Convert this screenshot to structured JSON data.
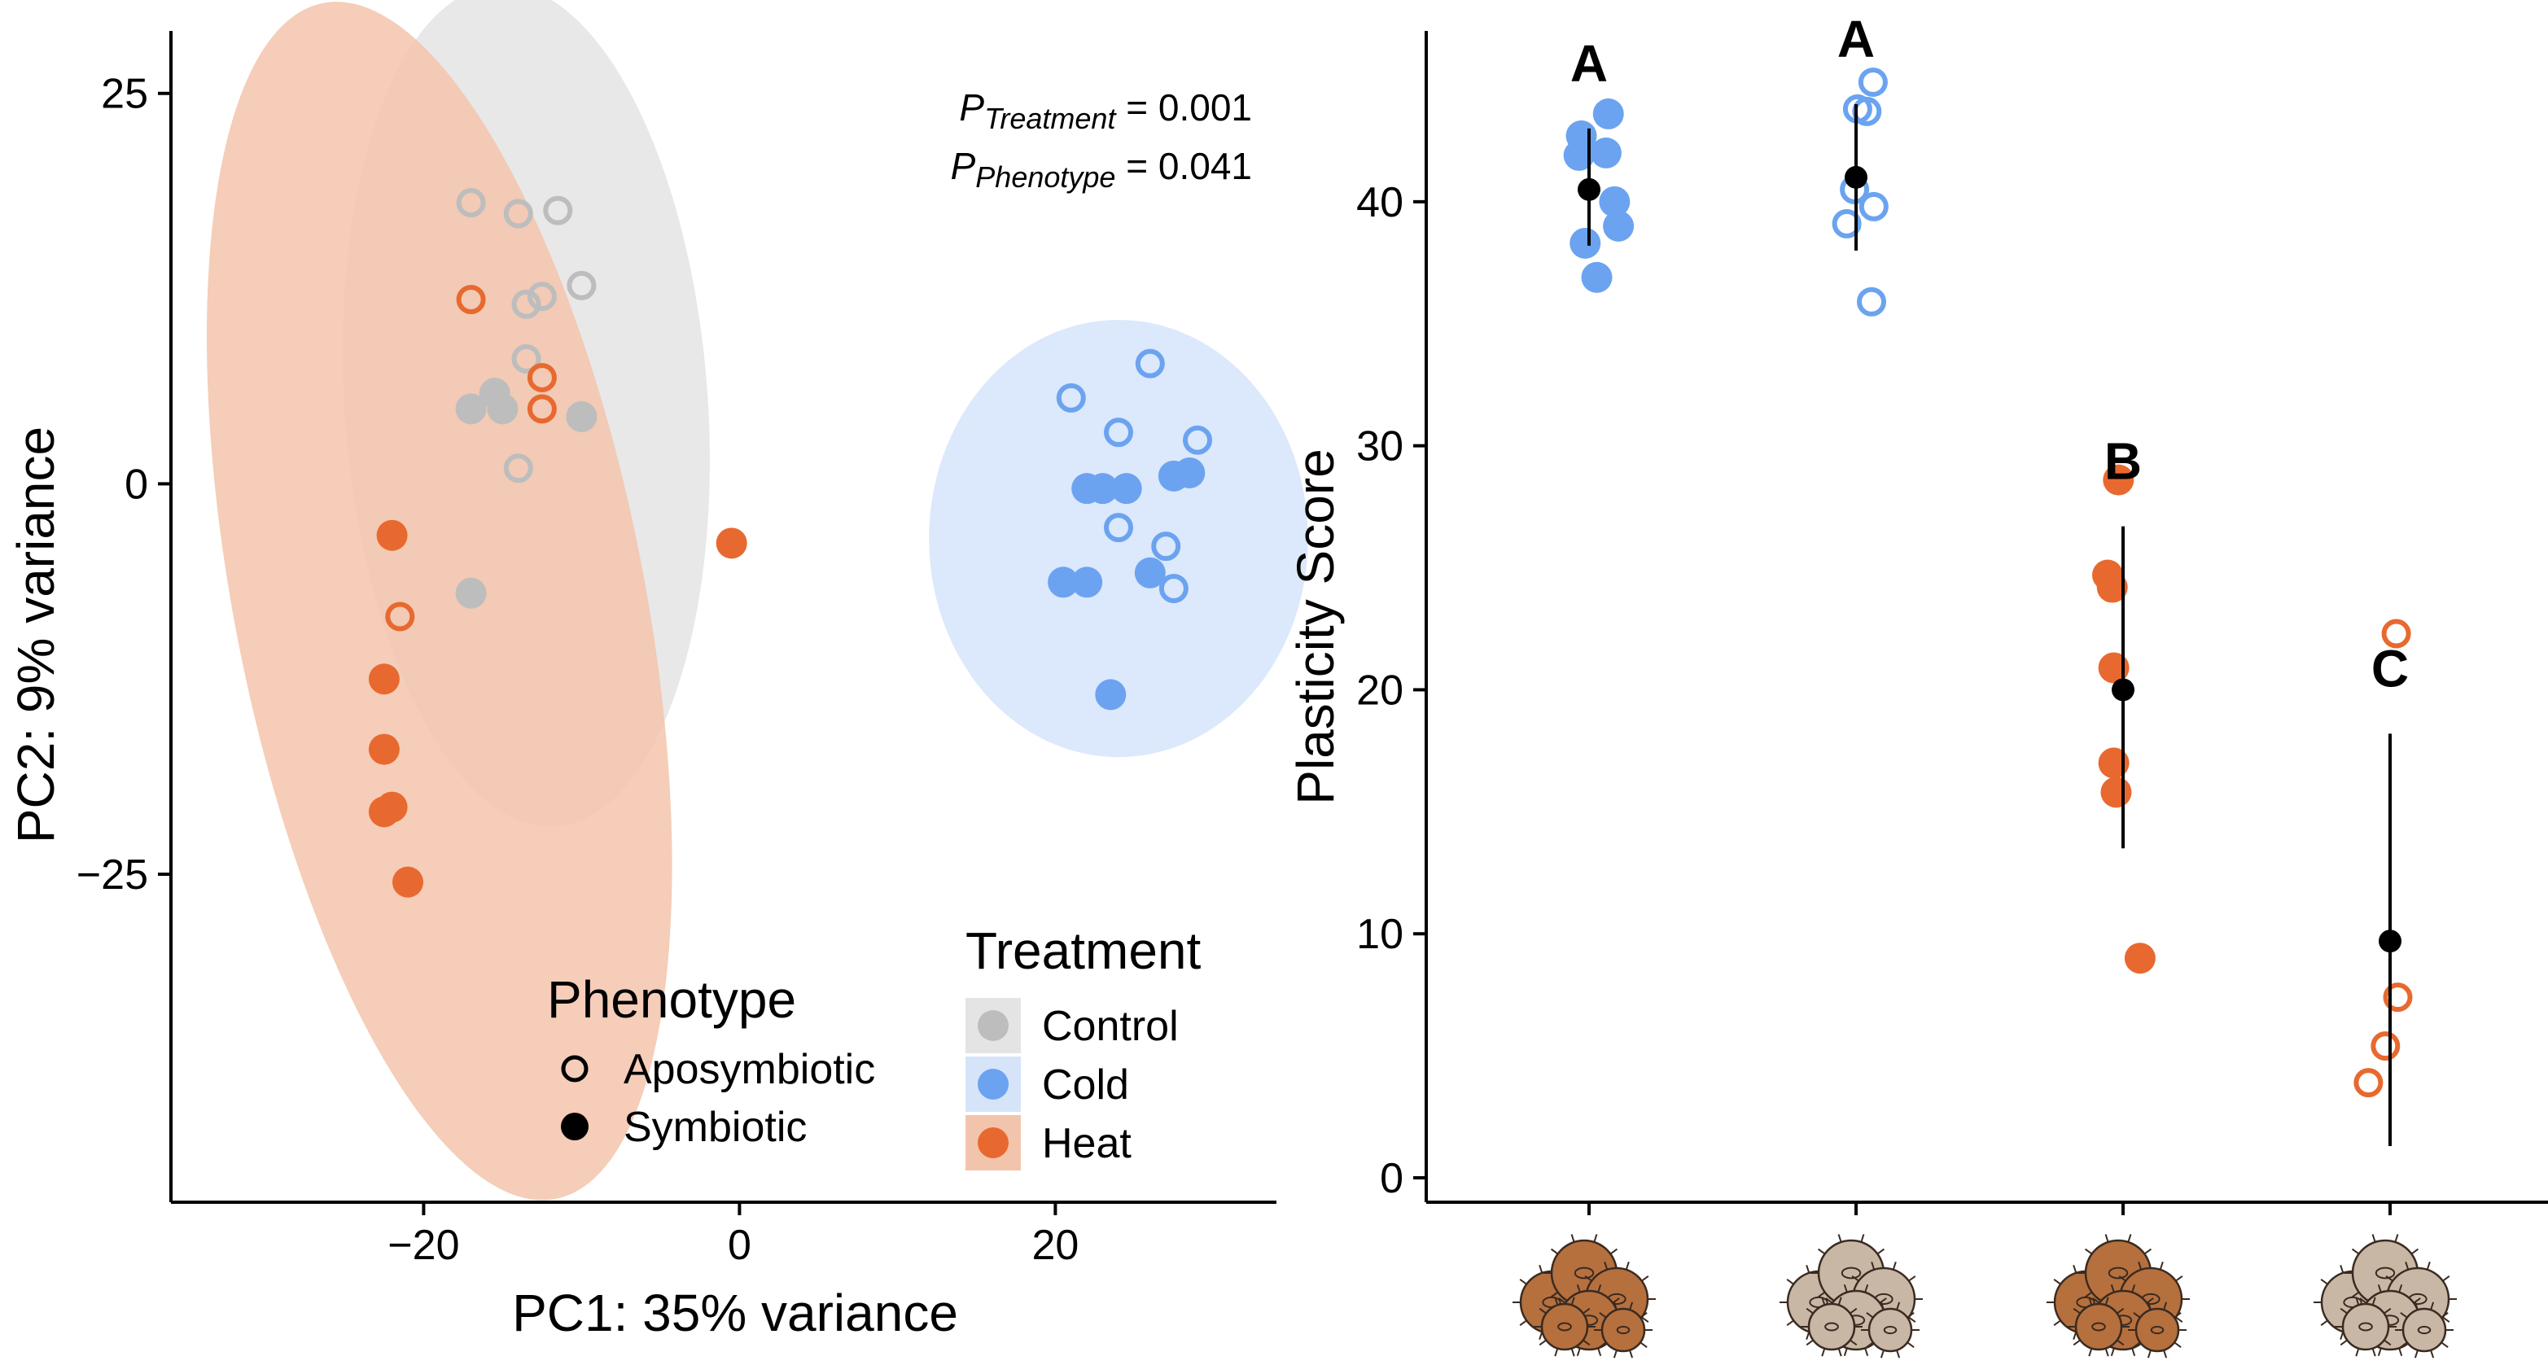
{
  "colors": {
    "control": "#BDBDBD",
    "cold": "#6BA3F0",
    "heat": "#E8692F",
    "control_ellipse": "#E4E4E4",
    "cold_ellipse": "#D6E4FA",
    "heat_ellipse": "#F3C4AC",
    "summary": "#000000"
  },
  "chart_data": [
    {
      "type": "scatter",
      "panel": "left",
      "title": "",
      "xlabel": "PC1: 35% variance",
      "ylabel": "PC2: 9% variance",
      "xlim": [
        -36,
        34
      ],
      "ylim": [
        -46,
        29
      ],
      "xticks": [
        -20,
        0,
        20
      ],
      "xtick_labels": [
        "−20",
        "0",
        "20"
      ],
      "yticks": [
        -25,
        0,
        25
      ],
      "ytick_labels": [
        "−25",
        "0",
        "25"
      ],
      "grid": false,
      "annotations": {
        "p_treatment_symbol": "P",
        "p_treatment_sub": "Treatment",
        "p_treatment_value": " = 0.001",
        "p_phenotype_symbol": "P",
        "p_phenotype_sub": "Phenotype",
        "p_phenotype_value": " = 0.041"
      },
      "legend": {
        "placement": "bottom-right",
        "treatment_title": "Treatment",
        "treatment_items": [
          {
            "label": "Control",
            "key": "control"
          },
          {
            "label": "Cold",
            "key": "cold"
          },
          {
            "label": "Heat",
            "key": "heat"
          }
        ],
        "phenotype_title": "Phenotype",
        "phenotype_items": [
          {
            "label": "Aposymbiotic",
            "filled": false
          },
          {
            "label": "Symbiotic",
            "filled": true
          }
        ]
      },
      "ellipses": [
        {
          "treatment": "control",
          "cx": -13.5,
          "cy": 5,
          "rx": 11.5,
          "ry": 27,
          "angle": -4
        },
        {
          "treatment": "heat",
          "cx": -19,
          "cy": -7.5,
          "rx": 13,
          "ry": 39,
          "angle": -11
        },
        {
          "treatment": "cold",
          "cx": 24,
          "cy": -3.5,
          "rx": 12,
          "ry": 14,
          "angle": 0
        }
      ],
      "series": [
        {
          "treatment": "control",
          "phenotype": "aposymbiotic",
          "x": [
            -17,
            -14,
            -11.5,
            -13.5,
            -12.5,
            -10,
            -13.5,
            -14
          ],
          "y": [
            18,
            17.3,
            17.5,
            11.5,
            12,
            12.7,
            8,
            1
          ]
        },
        {
          "treatment": "control",
          "phenotype": "symbiotic",
          "x": [
            -17,
            -15.5,
            -15,
            -10,
            -17
          ],
          "y": [
            4.8,
            5.8,
            4.8,
            4.3,
            -7
          ]
        },
        {
          "treatment": "heat",
          "phenotype": "aposymbiotic",
          "x": [
            -17,
            -12.5,
            -12.5,
            -21.5
          ],
          "y": [
            11.8,
            6.8,
            4.8,
            -8.5
          ]
        },
        {
          "treatment": "heat",
          "phenotype": "symbiotic",
          "x": [
            -22,
            -0.5,
            -22.5,
            -22.5,
            -22,
            -22.5,
            -21
          ],
          "y": [
            -3.3,
            -3.8,
            -12.5,
            -17,
            -20.7,
            -21,
            -25.5
          ]
        },
        {
          "treatment": "cold",
          "phenotype": "aposymbiotic",
          "x": [
            26,
            21,
            24,
            29,
            24,
            27,
            27.5
          ],
          "y": [
            7.7,
            5.5,
            3.3,
            2.8,
            -2.8,
            -4,
            -6.7
          ]
        },
        {
          "treatment": "cold",
          "phenotype": "symbiotic",
          "x": [
            22,
            23,
            24.5,
            27.5,
            28.5,
            20.5,
            22,
            26,
            23.5
          ],
          "y": [
            -0.3,
            -0.3,
            -0.3,
            0.5,
            0.7,
            -6.3,
            -6.3,
            -5.7,
            -13.5
          ]
        }
      ]
    },
    {
      "type": "scatter",
      "panel": "right",
      "title": "",
      "xlabel": "",
      "ylabel": "Plasticity Score",
      "ylim": [
        -1,
        47
      ],
      "yticks": [
        0,
        10,
        20,
        30,
        40
      ],
      "ytick_labels": [
        "0",
        "10",
        "20",
        "30",
        "40"
      ],
      "grid": false,
      "groups": [
        {
          "treatment": "cold",
          "phenotype": "symbiotic",
          "letter": "A",
          "icon_key": "heat",
          "mean": 40.5,
          "lower": 38.2,
          "upper": 43,
          "points": [
            {
              "dx": 0.25,
              "y": 43.6
            },
            {
              "dx": -0.1,
              "y": 42.7
            },
            {
              "dx": 0.22,
              "y": 42
            },
            {
              "dx": -0.13,
              "y": 41.9
            },
            {
              "dx": 0.33,
              "y": 40
            },
            {
              "dx": 0.38,
              "y": 39
            },
            {
              "dx": -0.05,
              "y": 38.3
            },
            {
              "dx": 0.1,
              "y": 36.9
            }
          ]
        },
        {
          "treatment": "cold",
          "phenotype": "aposymbiotic",
          "letter": "A",
          "icon_key": "control",
          "mean": 41,
          "lower": 38,
          "upper": 44,
          "points": [
            {
              "dx": 0.22,
              "y": 44.9
            },
            {
              "dx": 0.02,
              "y": 43.8
            },
            {
              "dx": 0.14,
              "y": 43.7
            },
            {
              "dx": -0.02,
              "y": 40.5
            },
            {
              "dx": 0.23,
              "y": 39.8
            },
            {
              "dx": -0.12,
              "y": 39.1
            },
            {
              "dx": 0.2,
              "y": 35.9
            }
          ]
        },
        {
          "treatment": "heat",
          "phenotype": "symbiotic",
          "letter": "B",
          "icon_key": "heat",
          "mean": 20,
          "lower": 13.5,
          "upper": 26.7,
          "points": [
            {
              "dx": -0.06,
              "y": 28.6
            },
            {
              "dx": -0.2,
              "y": 24.7
            },
            {
              "dx": -0.14,
              "y": 24.2
            },
            {
              "dx": -0.12,
              "y": 20.9
            },
            {
              "dx": -0.12,
              "y": 17
            },
            {
              "dx": -0.09,
              "y": 15.8
            },
            {
              "dx": 0.22,
              "y": 9
            }
          ]
        },
        {
          "treatment": "heat",
          "phenotype": "aposymbiotic",
          "letter": "C",
          "icon_key": "control",
          "mean": 9.7,
          "lower": 1.3,
          "upper": 18.2,
          "points": [
            {
              "dx": 0.08,
              "y": 22.3
            },
            {
              "dx": 0.1,
              "y": 7.4
            },
            {
              "dx": -0.06,
              "y": 5.4
            },
            {
              "dx": -0.28,
              "y": 3.9
            }
          ]
        }
      ]
    }
  ]
}
